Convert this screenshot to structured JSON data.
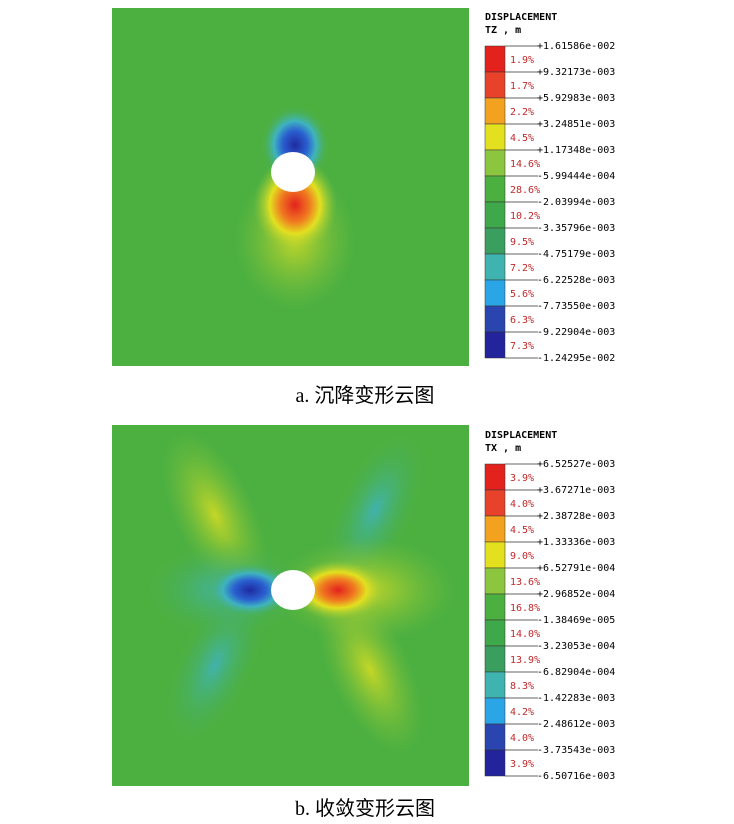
{
  "panels": [
    {
      "legend": {
        "title": "DISPLACEMENT",
        "unit": "TZ , m",
        "levels": [
          "+1.61586e-002",
          "+9.32173e-003",
          "+5.92983e-003",
          "+3.24851e-003",
          "+1.17348e-003",
          "-5.99444e-004",
          "-2.03994e-003",
          "-3.35796e-003",
          "-4.75179e-003",
          "-6.22528e-003",
          "-7.73550e-003",
          "-9.22904e-003",
          "-1.24295e-002"
        ],
        "percents": [
          "1.9%",
          "1.7%",
          "2.2%",
          "4.5%",
          "14.6%",
          "28.6%",
          "10.2%",
          "9.5%",
          "7.2%",
          "5.6%",
          "6.3%",
          "7.3%"
        ],
        "colors": [
          "#e3221e",
          "#e8432a",
          "#f2a21e",
          "#e3e020",
          "#8cc63e",
          "#4cb040",
          "#3fa84a",
          "#3a9f5e",
          "#3fb3b0",
          "#2aa5e6",
          "#2a45b0",
          "#23239c"
        ]
      },
      "caption": "a. 沉降变形云图"
    },
    {
      "legend": {
        "title": "DISPLACEMENT",
        "unit": "TX , m",
        "levels": [
          "+6.52527e-003",
          "+3.67271e-003",
          "+2.38728e-003",
          "+1.33336e-003",
          "+6.52791e-004",
          "+2.96852e-004",
          "-1.38469e-005",
          "-3.23053e-004",
          "-6.82904e-004",
          "-1.42283e-003",
          "-2.48612e-003",
          "-3.73543e-003",
          "-6.50716e-003"
        ],
        "percents": [
          "3.9%",
          "4.0%",
          "4.5%",
          "9.0%",
          "13.6%",
          "16.8%",
          "14.0%",
          "13.9%",
          "8.3%",
          "4.2%",
          "4.0%",
          "3.9%"
        ],
        "colors": [
          "#e3221e",
          "#e8432a",
          "#f2a21e",
          "#e3e020",
          "#8cc63e",
          "#4cb040",
          "#3fa84a",
          "#3a9f5e",
          "#3fb3b0",
          "#2aa5e6",
          "#2a45b0",
          "#23239c"
        ]
      },
      "caption": "b. 收敛变形云图"
    }
  ]
}
